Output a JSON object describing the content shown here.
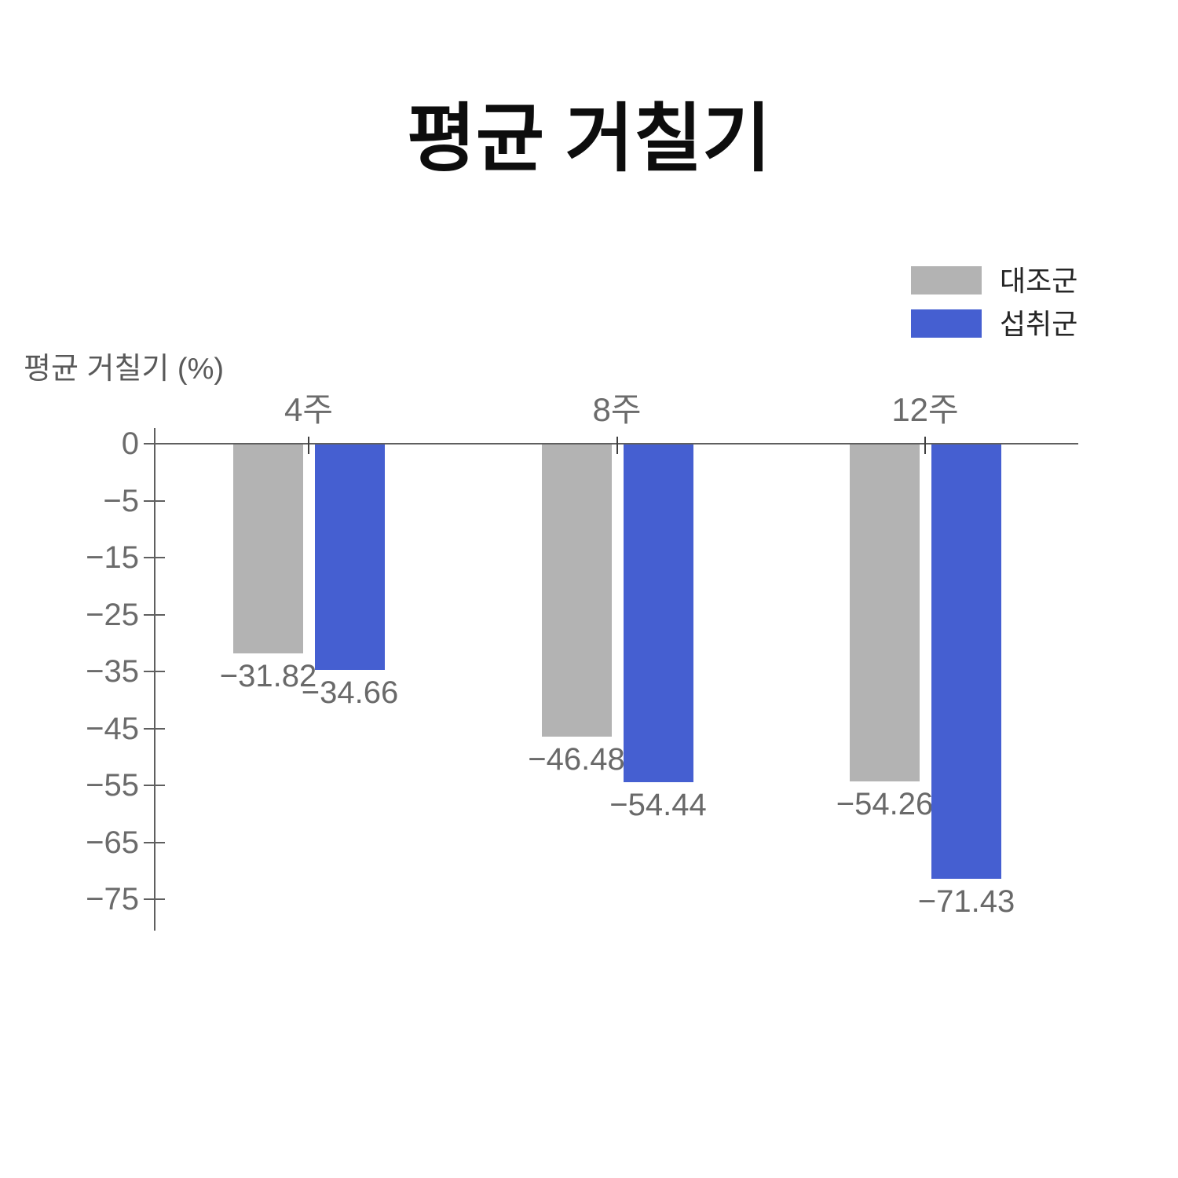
{
  "chart": {
    "title": "평균 거칠기",
    "y_axis_title": "평균 거칠기 (%)",
    "background_color": "#ffffff",
    "axis_color": "#5f5f5f",
    "tick_label_color": "#6b6b6b",
    "data_label_color": "#696969",
    "title_color": "#0d0d0d",
    "legend_text_color": "#262626"
  },
  "chart_data": {
    "type": "bar",
    "title": "평균 거칠기",
    "xlabel": "",
    "ylabel": "평균 거칠기 (%)",
    "categories": [
      "4주",
      "8주",
      "12주"
    ],
    "series": [
      {
        "name": "대조군",
        "color": "#b3b3b3",
        "values": [
          -31.82,
          -46.48,
          -54.26
        ],
        "labels": [
          "−31.82",
          "−46.48",
          "−54.26"
        ]
      },
      {
        "name": "섭취군",
        "color": "#455fd1",
        "values": [
          -34.66,
          -54.44,
          -71.43
        ],
        "labels": [
          "−34.66",
          "−54.44",
          "−71.43"
        ]
      }
    ],
    "y_axis": {
      "tick_values": [
        0,
        -5,
        -15,
        -25,
        -35,
        -45,
        -55,
        -65,
        -75
      ],
      "tick_labels": [
        "0",
        "−5",
        "−15",
        "−25",
        "−35",
        "−45",
        "−55",
        "−65",
        "−75"
      ]
    },
    "ylim": [
      -75,
      0
    ],
    "grid": false,
    "legend_position": "top-right",
    "bar_orientation": "vertical-negative"
  }
}
